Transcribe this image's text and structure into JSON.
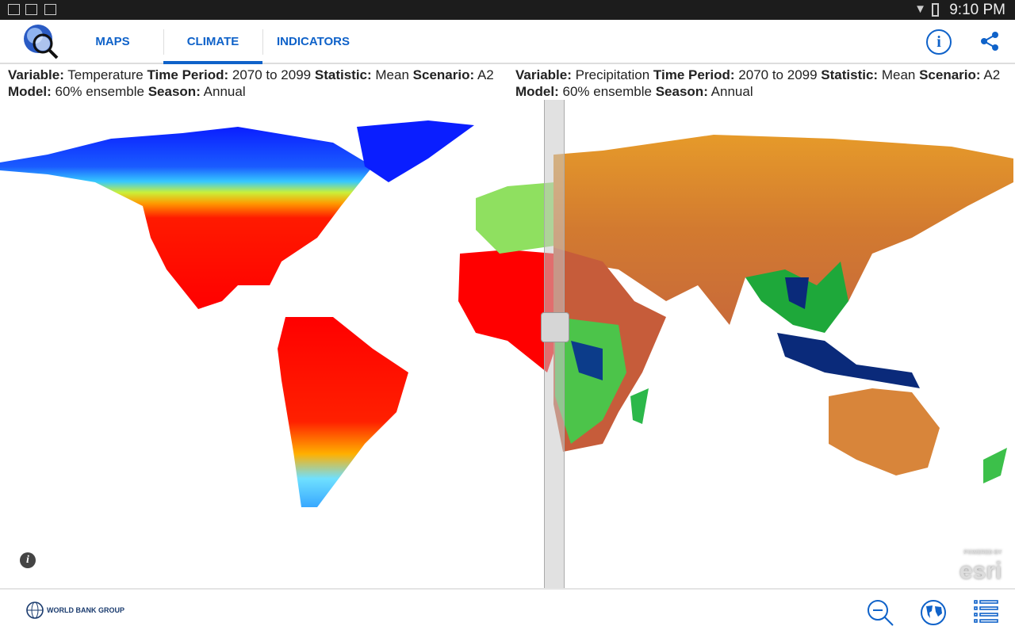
{
  "status_bar": {
    "time": "9:10 PM",
    "icons": [
      "gallery-icon",
      "email-icon",
      "download-done-icon",
      "wifi-icon",
      "battery-icon"
    ]
  },
  "app_bar": {
    "tabs": [
      {
        "label": "MAPS",
        "active": false
      },
      {
        "label": "CLIMATE",
        "active": true
      },
      {
        "label": "INDICATORS",
        "active": false
      }
    ],
    "info_label": "i",
    "accent": "#0f62c9"
  },
  "left_map": {
    "variable_label": "Variable:",
    "variable": "Temperature",
    "period_label": "Time Period:",
    "period": "2070 to 2099",
    "statistic_label": "Statistic:",
    "statistic": "Mean",
    "scenario_label": "Scenario:",
    "scenario": "A2",
    "model_label": "Model:",
    "model": "60% ensemble",
    "season_label": "Season:",
    "season": "Annual"
  },
  "right_map": {
    "variable_label": "Variable:",
    "variable": "Precipitation",
    "period_label": "Time Period:",
    "period": "2070 to 2099",
    "statistic_label": "Statistic:",
    "statistic": "Mean",
    "scenario_label": "Scenario:",
    "scenario": "A2",
    "model_label": "Model:",
    "model": "60% ensemble",
    "season_label": "Season:",
    "season": "Annual"
  },
  "map": {
    "info_label": "i",
    "attribution_top": "POWERED BY",
    "attribution": "esri"
  },
  "footer": {
    "brand": "WORLD BANK GROUP",
    "buttons": [
      "zoom-out-icon",
      "globe-icon",
      "list-icon"
    ]
  }
}
